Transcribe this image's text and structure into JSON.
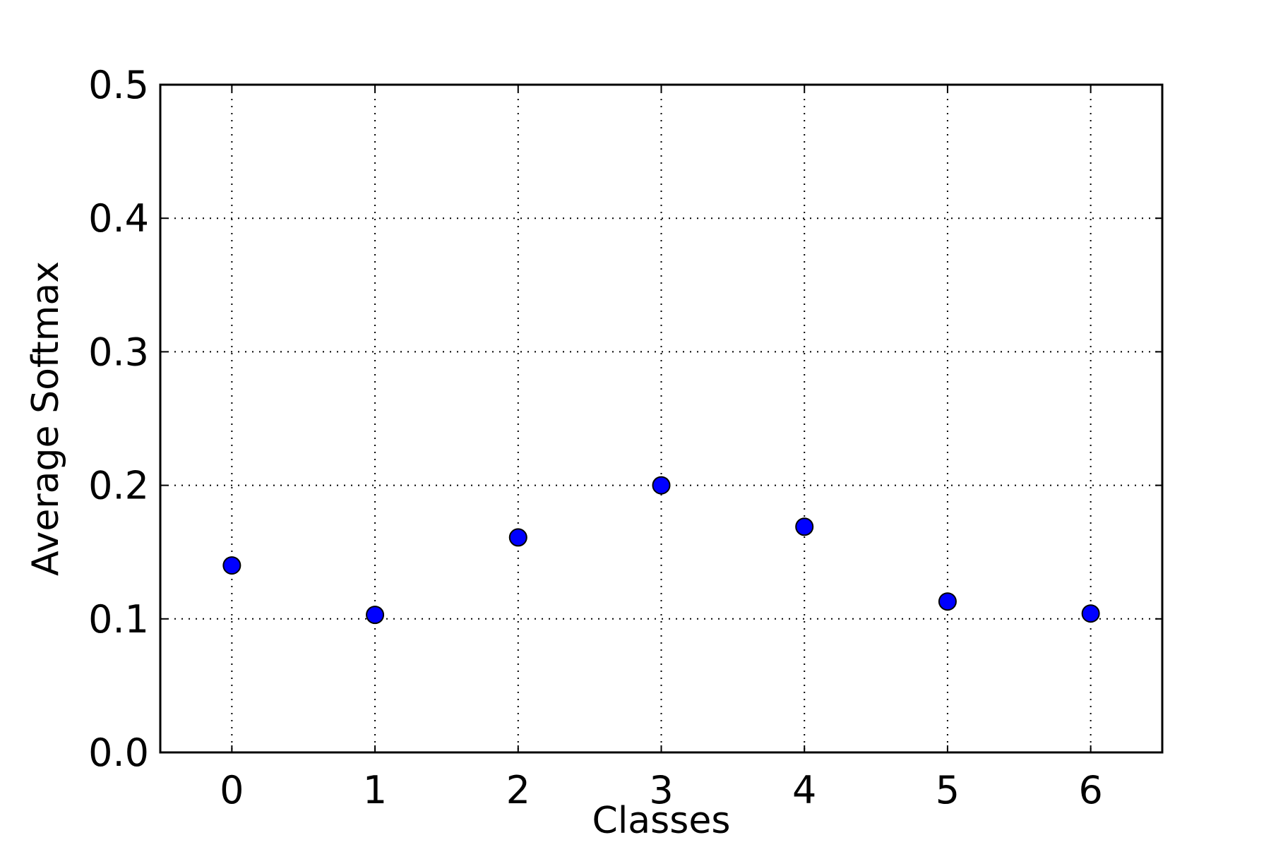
{
  "chart_data": {
    "type": "scatter",
    "x": [
      0,
      1,
      2,
      3,
      4,
      5,
      6
    ],
    "y": [
      0.14,
      0.103,
      0.161,
      0.2,
      0.169,
      0.113,
      0.104
    ],
    "xticks": [
      "0",
      "1",
      "2",
      "3",
      "4",
      "5",
      "6"
    ],
    "yticks": [
      "0.0",
      "0.1",
      "0.2",
      "0.3",
      "0.4",
      "0.5"
    ],
    "xlabel": "Classes",
    "ylabel": "Average Softmax",
    "xlim": [
      -0.5,
      6.5
    ],
    "ylim": [
      0,
      0.5
    ],
    "grid": true,
    "marker_color": "#0000ff"
  }
}
